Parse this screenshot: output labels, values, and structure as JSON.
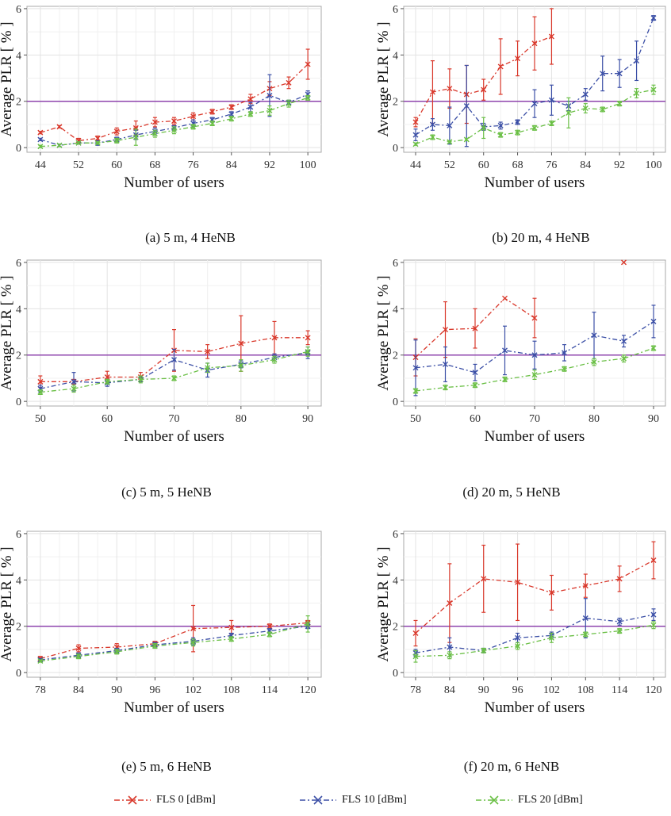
{
  "figure": {
    "ylabel": "Average  PLR  [ % ]",
    "xlabel": "Number of users",
    "reference_line": 2,
    "colors": {
      "FLS 0 [dBm]": "#d9382b",
      "FLS 10 [dBm]": "#3b4fa6",
      "FLS 20 [dBm]": "#6abf45",
      "reference": "#8e44ad"
    },
    "legend": [
      "FLS 0 [dBm]",
      "FLS 10 [dBm]",
      "FLS 20 [dBm]"
    ]
  },
  "chart_data": [
    {
      "type": "line",
      "caption": "(a)  5 m, 4 HeNB",
      "xlabel": "Number of users",
      "ylabel": "Average  PLR  [ % ]",
      "ylim": [
        0,
        6
      ],
      "xlim": [
        44,
        100
      ],
      "x": [
        44,
        48,
        52,
        56,
        60,
        64,
        68,
        72,
        76,
        80,
        84,
        88,
        92,
        96,
        100
      ],
      "xticks": [
        44,
        52,
        60,
        68,
        76,
        84,
        92,
        100
      ],
      "yticks": [
        0,
        2,
        4,
        6
      ],
      "series": [
        {
          "name": "FLS 0 [dBm]",
          "values": [
            0.65,
            0.9,
            0.3,
            0.4,
            0.7,
            0.85,
            1.1,
            1.15,
            1.35,
            1.55,
            1.75,
            2.1,
            2.55,
            2.8,
            3.6
          ],
          "err": [
            0.05,
            0.05,
            0.1,
            0.1,
            0.15,
            0.3,
            0.2,
            0.15,
            0.15,
            0.1,
            0.1,
            0.2,
            0.3,
            0.25,
            0.65
          ]
        },
        {
          "name": "FLS 10 [dBm]",
          "values": [
            0.35,
            0.1,
            0.2,
            0.2,
            0.35,
            0.55,
            0.7,
            0.85,
            1.05,
            1.2,
            1.45,
            1.75,
            2.25,
            1.95,
            2.3
          ],
          "err": [
            0.05,
            0.05,
            0.05,
            0.1,
            0.1,
            0.2,
            0.15,
            0.1,
            0.15,
            0.1,
            0.1,
            0.2,
            0.9,
            0.1,
            0.15
          ]
        },
        {
          "name": "FLS 20 [dBm]",
          "values": [
            0.05,
            0.1,
            0.2,
            0.2,
            0.3,
            0.45,
            0.6,
            0.75,
            0.9,
            1.05,
            1.25,
            1.45,
            1.6,
            1.9,
            2.15
          ],
          "err": [
            0.05,
            0.05,
            0.05,
            0.05,
            0.1,
            0.35,
            0.15,
            0.15,
            0.1,
            0.1,
            0.1,
            0.1,
            0.2,
            0.15,
            0.1
          ]
        }
      ]
    },
    {
      "type": "line",
      "caption": "(b) 20 m, 4 HeNB",
      "xlabel": "Number of users",
      "ylabel": "Average  PLR  [ % ]",
      "ylim": [
        0,
        6
      ],
      "xlim": [
        44,
        100
      ],
      "x": [
        44,
        48,
        52,
        56,
        60,
        64,
        68,
        72,
        76,
        80,
        84,
        88,
        92,
        96,
        100
      ],
      "xticks": [
        44,
        52,
        60,
        68,
        76,
        84,
        92,
        100
      ],
      "yticks": [
        0,
        2,
        4,
        6
      ],
      "series": [
        {
          "name": "FLS 0 [dBm]",
          "values": [
            1.1,
            2.4,
            2.55,
            2.3,
            2.5,
            3.5,
            3.85,
            4.5,
            4.8,
            null,
            null,
            null,
            null,
            null,
            null
          ],
          "err": [
            0.2,
            1.35,
            0.85,
            1.25,
            0.45,
            1.2,
            0.75,
            1.15,
            1.2,
            null,
            null,
            null,
            null,
            null,
            null
          ]
        },
        {
          "name": "FLS 10 [dBm]",
          "values": [
            0.55,
            1.0,
            0.95,
            1.8,
            0.9,
            0.95,
            1.1,
            1.9,
            2.05,
            1.8,
            2.3,
            3.2,
            3.2,
            3.75,
            5.6
          ],
          "err": [
            0.25,
            0.25,
            0.8,
            1.75,
            0.15,
            0.15,
            0.1,
            0.6,
            0.65,
            0.2,
            0.25,
            0.75,
            0.6,
            0.85,
            0.1
          ]
        },
        {
          "name": "FLS 20 [dBm]",
          "values": [
            0.15,
            0.45,
            0.25,
            0.35,
            0.85,
            0.55,
            0.65,
            0.85,
            1.05,
            1.5,
            1.7,
            1.65,
            1.9,
            2.35,
            2.5
          ],
          "err": [
            0.05,
            0.1,
            0.05,
            0.05,
            0.45,
            0.1,
            0.1,
            0.1,
            0.1,
            0.65,
            0.2,
            0.1,
            0.1,
            0.2,
            0.2
          ]
        }
      ]
    },
    {
      "type": "line",
      "caption": "(c) 5 m, 5 HeNB",
      "xlabel": "Number of users",
      "ylabel": "Average  PLR  [ % ]",
      "ylim": [
        0,
        6
      ],
      "xlim": [
        50,
        90
      ],
      "x": [
        50,
        55,
        60,
        65,
        70,
        75,
        80,
        85,
        90
      ],
      "xticks": [
        50,
        60,
        70,
        80,
        90
      ],
      "yticks": [
        0,
        2,
        4,
        6
      ],
      "series": [
        {
          "name": "FLS 0 [dBm]",
          "values": [
            0.85,
            0.85,
            1.05,
            1.05,
            2.2,
            2.15,
            2.5,
            2.75,
            2.75
          ],
          "err": [
            0.25,
            0.1,
            0.25,
            0.2,
            0.9,
            0.3,
            1.2,
            0.7,
            0.3
          ]
        },
        {
          "name": "FLS 10 [dBm]",
          "values": [
            0.55,
            0.85,
            0.8,
            0.95,
            1.8,
            1.35,
            1.6,
            1.9,
            2.1
          ],
          "err": [
            0.15,
            0.4,
            0.15,
            0.1,
            0.45,
            0.3,
            0.15,
            0.15,
            0.25
          ]
        },
        {
          "name": "FLS 20 [dBm]",
          "values": [
            0.4,
            0.55,
            0.85,
            0.95,
            1.0,
            1.45,
            1.55,
            1.8,
            2.15
          ],
          "err": [
            0.1,
            0.15,
            0.1,
            0.15,
            0.1,
            0.2,
            0.25,
            0.15,
            0.2
          ]
        }
      ]
    },
    {
      "type": "line",
      "caption": "(d) 20 m, 5 HeNB",
      "xlabel": "Number of users",
      "ylabel": "Average  PLR  [ % ]",
      "ylim": [
        0,
        6
      ],
      "xlim": [
        50,
        90
      ],
      "x": [
        50,
        55,
        60,
        65,
        70,
        75,
        80,
        85,
        90
      ],
      "xticks": [
        50,
        60,
        70,
        80,
        90
      ],
      "yticks": [
        0,
        2,
        4,
        6
      ],
      "series": [
        {
          "name": "FLS 0 [dBm]",
          "values": [
            1.9,
            3.1,
            3.15,
            4.45,
            3.6,
            null,
            null,
            6.0,
            null
          ],
          "err": [
            0.8,
            1.2,
            0.85,
            0,
            0.85,
            null,
            null,
            0,
            null
          ]
        },
        {
          "name": "FLS 10 [dBm]",
          "values": [
            1.45,
            1.6,
            1.25,
            2.2,
            2.0,
            2.1,
            2.85,
            2.6,
            3.45
          ],
          "err": [
            1.2,
            0.75,
            0.35,
            1.05,
            0.6,
            0.35,
            1.0,
            0.25,
            0.7
          ]
        },
        {
          "name": "FLS 20 [dBm]",
          "values": [
            0.45,
            0.6,
            0.7,
            0.95,
            1.15,
            1.4,
            1.7,
            1.85,
            2.3
          ],
          "err": [
            0.1,
            0.1,
            0.1,
            0.1,
            0.2,
            0.1,
            0.15,
            0.15,
            0.1
          ]
        }
      ]
    },
    {
      "type": "line",
      "caption": "(e) 5 m, 6 HeNB",
      "xlabel": "Number of users",
      "ylabel": "Average  PLR  [ % ]",
      "ylim": [
        0,
        6
      ],
      "xlim": [
        78,
        120
      ],
      "x": [
        78,
        84,
        90,
        96,
        102,
        108,
        114,
        120
      ],
      "xticks": [
        78,
        84,
        90,
        96,
        102,
        108,
        114,
        120
      ],
      "yticks": [
        0,
        2,
        4,
        6
      ],
      "series": [
        {
          "name": "FLS 0 [dBm]",
          "values": [
            0.6,
            1.05,
            1.1,
            1.25,
            1.9,
            1.95,
            2.0,
            2.15
          ],
          "err": [
            0.1,
            0.15,
            0.15,
            0.1,
            1.0,
            0.3,
            0.1,
            0.1
          ]
        },
        {
          "name": "FLS 10 [dBm]",
          "values": [
            0.55,
            0.75,
            0.95,
            1.2,
            1.35,
            1.6,
            1.8,
            2.0
          ],
          "err": [
            0.05,
            0.1,
            0.1,
            0.1,
            0.15,
            0.1,
            0.1,
            0.1
          ]
        },
        {
          "name": "FLS 20 [dBm]",
          "values": [
            0.5,
            0.7,
            0.9,
            1.15,
            1.3,
            1.45,
            1.65,
            2.1
          ],
          "err": [
            0.05,
            0.1,
            0.1,
            0.1,
            0.15,
            0.1,
            0.1,
            0.35
          ]
        }
      ]
    },
    {
      "type": "line",
      "caption": "(f) 20 m, 6 HeNB",
      "xlabel": "Number of users",
      "ylabel": "Average  PLR  [ % ]",
      "ylim": [
        0,
        6
      ],
      "xlim": [
        78,
        120
      ],
      "x": [
        78,
        84,
        90,
        96,
        102,
        108,
        114,
        120
      ],
      "xticks": [
        78,
        84,
        90,
        96,
        102,
        108,
        114,
        120
      ],
      "yticks": [
        0,
        2,
        4,
        6
      ],
      "series": [
        {
          "name": "FLS 0 [dBm]",
          "values": [
            1.7,
            3.0,
            4.05,
            3.9,
            3.45,
            3.75,
            4.05,
            4.85
          ],
          "err": [
            0.55,
            1.7,
            1.45,
            1.65,
            0.75,
            0.5,
            0.55,
            0.8
          ]
        },
        {
          "name": "FLS 10 [dBm]",
          "values": [
            0.85,
            1.1,
            0.95,
            1.5,
            1.6,
            2.35,
            2.2,
            2.5
          ],
          "err": [
            0.15,
            0.4,
            0.1,
            0.2,
            0.15,
            0.85,
            0.15,
            0.25
          ]
        },
        {
          "name": "FLS 20 [dBm]",
          "values": [
            0.7,
            0.75,
            0.95,
            1.15,
            1.5,
            1.65,
            1.8,
            2.05
          ],
          "err": [
            0.25,
            0.15,
            0.1,
            0.15,
            0.2,
            0.1,
            0.1,
            0.15
          ]
        }
      ]
    }
  ]
}
